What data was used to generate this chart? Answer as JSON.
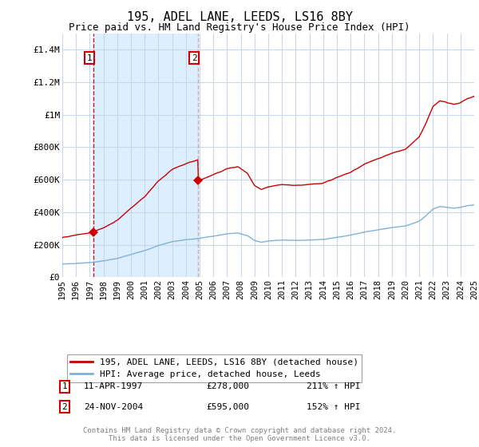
{
  "title": "195, ADEL LANE, LEEDS, LS16 8BY",
  "subtitle": "Price paid vs. HM Land Registry's House Price Index (HPI)",
  "ylim": [
    0,
    1500000
  ],
  "yticks": [
    0,
    200000,
    400000,
    600000,
    800000,
    1000000,
    1200000,
    1400000
  ],
  "ytick_labels": [
    "£0",
    "£200K",
    "£400K",
    "£600K",
    "£800K",
    "£1M",
    "£1.2M",
    "£1.4M"
  ],
  "x_start_year": 1995,
  "x_end_year": 2025,
  "sale1_year": 1997.27,
  "sale1_price": 278000,
  "sale1_label": "1",
  "sale1_date": "11-APR-1997",
  "sale1_hpi": "211%",
  "sale2_year": 2004.9,
  "sale2_price": 595000,
  "sale2_label": "2",
  "sale2_date": "24-NOV-2004",
  "sale2_hpi": "152%",
  "red_line_color": "#cc0000",
  "blue_line_color": "#7fb3d3",
  "vline1_color": "#cc0000",
  "vline2_color": "#999999",
  "shade_color": "#ddeeff",
  "background_color": "#ffffff",
  "grid_color": "#c8d8e8",
  "title_fontsize": 11,
  "subtitle_fontsize": 9,
  "legend_entry1": "195, ADEL LANE, LEEDS, LS16 8BY (detached house)",
  "legend_entry2": "HPI: Average price, detached house, Leeds",
  "footer": "Contains HM Land Registry data © Crown copyright and database right 2024.\nThis data is licensed under the Open Government Licence v3.0."
}
